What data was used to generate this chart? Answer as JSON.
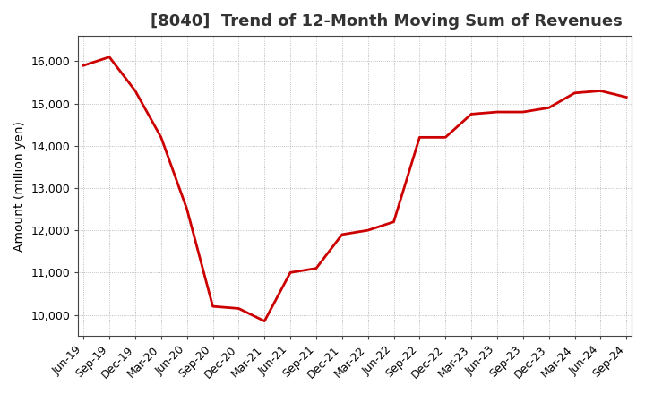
{
  "title": "[8040]  Trend of 12-Month Moving Sum of Revenues",
  "ylabel": "Amount (million yen)",
  "line_color": "#cc0000",
  "background_color": "#ffffff",
  "plot_bg_color": "#ffffff",
  "grid_color": "#999999",
  "x_labels": [
    "Jun-19",
    "Sep-19",
    "Dec-19",
    "Mar-20",
    "Jun-20",
    "Sep-20",
    "Dec-20",
    "Mar-21",
    "Jun-21",
    "Sep-21",
    "Dec-21",
    "Mar-22",
    "Jun-22",
    "Sep-22",
    "Dec-22",
    "Mar-23",
    "Jun-23",
    "Sep-23",
    "Dec-23",
    "Mar-24",
    "Jun-24",
    "Sep-24"
  ],
  "y_values": [
    15900,
    16100,
    15300,
    14200,
    12500,
    10200,
    10150,
    9850,
    11000,
    11100,
    11900,
    12000,
    12200,
    14200,
    14200,
    14750,
    14800,
    14800,
    14900,
    15250,
    15300,
    15150
  ],
  "ylim": [
    9500,
    16600
  ],
  "yticks": [
    10000,
    11000,
    12000,
    13000,
    14000,
    15000,
    16000
  ],
  "title_fontsize": 13,
  "title_color": "#333333",
  "axis_fontsize": 10,
  "tick_fontsize": 9,
  "line_width": 2.0
}
